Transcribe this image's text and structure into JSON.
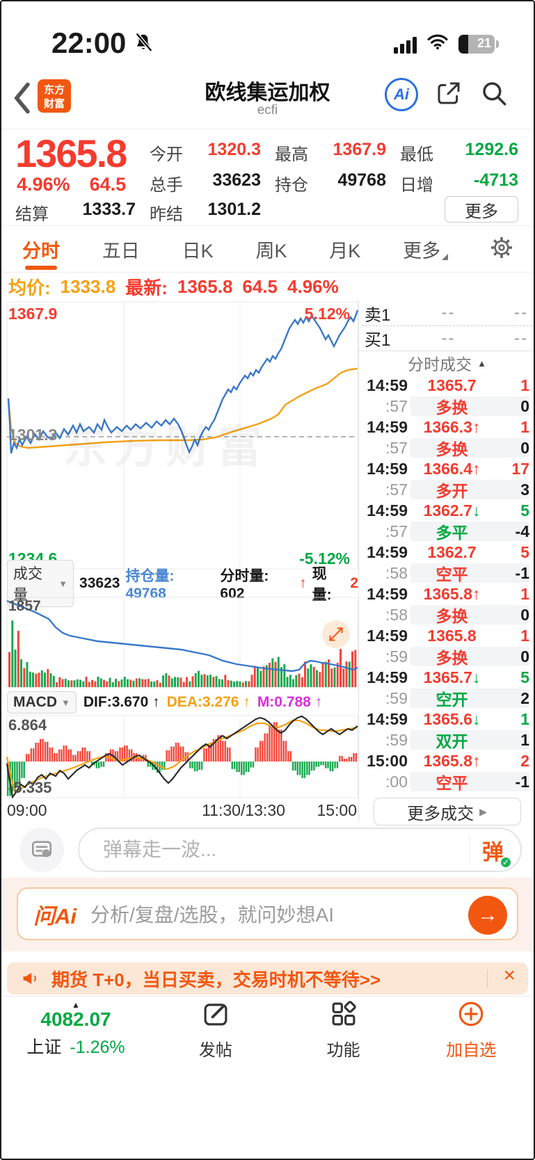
{
  "status": {
    "time": "22:00",
    "battery": "21"
  },
  "header": {
    "logo_line1": "东方",
    "logo_line2": "财富",
    "title": "欧线集运加权",
    "subtitle": "ecfi",
    "ai_label": "Ai"
  },
  "quote": {
    "price": "1365.8",
    "change_pct": "4.96%",
    "change": "64.5",
    "open_label": "今开",
    "open": "1320.3",
    "high_label": "最高",
    "high": "1367.9",
    "low_label": "最低",
    "low": "1292.6",
    "vol_label": "总手",
    "vol": "33623",
    "oi_label": "持仓",
    "oi": "49768",
    "inc_label": "日增",
    "inc": "-4713",
    "settle_label": "结算",
    "settle": "1333.7",
    "prev_label": "昨结",
    "prev": "1301.2",
    "more_label": "更多"
  },
  "tabs": {
    "items": [
      "分时",
      "五日",
      "日K",
      "周K",
      "月K"
    ],
    "more": "更多"
  },
  "avg_row": {
    "avg_label": "均价:",
    "avg": "1333.8",
    "last_label": "最新:",
    "last": "1365.8",
    "chg": "64.5",
    "pct": "4.96%"
  },
  "chart": {
    "y_max": "1367.9",
    "y_mid": "1301.3",
    "y_min": "1234.6",
    "pct_max": "5.12%",
    "pct_min": "-5.12%",
    "watermark": "东方财富",
    "x_labels": [
      "09:00",
      "11:30/13:30",
      "15:00"
    ]
  },
  "volume": {
    "selector": "成交量",
    "total": "33623",
    "oi_label": "持仓量:",
    "oi": "49768",
    "min_label": "分时量:",
    "min_vol": "602",
    "arrow": "↑",
    "cur_label": "现量:",
    "cur": "2",
    "y_max": "1857"
  },
  "macd": {
    "selector": "MACD",
    "dif": "DIF:3.670 ↑",
    "dea": "DEA:3.276 ↑",
    "m": "M:0.788 ↑",
    "y_max": "6.864",
    "y_min": "-5.335"
  },
  "orderbook": {
    "ask_label": "卖1",
    "ask_price": "--",
    "ask_vol": "--",
    "bid_label": "买1",
    "bid_price": "--",
    "bid_vol": "--"
  },
  "trades": {
    "header": "分时成交",
    "more": "更多成交",
    "rows": [
      {
        "time": "14:59",
        "price": "1365.7",
        "arrow": "",
        "ac": "",
        "pc": "r",
        "value": "1",
        "vc": "r",
        "shaded": false
      },
      {
        "time": ":57",
        "price": "多换",
        "arrow": "",
        "ac": "",
        "pc": "r",
        "value": "0",
        "vc": "k",
        "shaded": true
      },
      {
        "time": "14:59",
        "price": "1366.3",
        "arrow": "↑",
        "ac": "r",
        "pc": "r",
        "value": "1",
        "vc": "r",
        "shaded": false
      },
      {
        "time": ":57",
        "price": "多换",
        "arrow": "",
        "ac": "",
        "pc": "r",
        "value": "0",
        "vc": "k",
        "shaded": true
      },
      {
        "time": "14:59",
        "price": "1366.4",
        "arrow": "↑",
        "ac": "r",
        "pc": "r",
        "value": "17",
        "vc": "r",
        "shaded": false
      },
      {
        "time": ":57",
        "price": "多开",
        "arrow": "",
        "ac": "",
        "pc": "r",
        "value": "3",
        "vc": "k",
        "shaded": true
      },
      {
        "time": "14:59",
        "price": "1362.7",
        "arrow": "↓",
        "ac": "g",
        "pc": "r",
        "value": "5",
        "vc": "g",
        "shaded": false
      },
      {
        "time": ":57",
        "price": "多平",
        "arrow": "",
        "ac": "",
        "pc": "g",
        "value": "-4",
        "vc": "k",
        "shaded": true
      },
      {
        "time": "14:59",
        "price": "1362.7",
        "arrow": "",
        "ac": "",
        "pc": "r",
        "value": "5",
        "vc": "r",
        "shaded": false
      },
      {
        "time": ":58",
        "price": "空平",
        "arrow": "",
        "ac": "",
        "pc": "r",
        "value": "-1",
        "vc": "k",
        "shaded": true
      },
      {
        "time": "14:59",
        "price": "1365.8",
        "arrow": "↑",
        "ac": "r",
        "pc": "r",
        "value": "1",
        "vc": "r",
        "shaded": false
      },
      {
        "time": ":58",
        "price": "多换",
        "arrow": "",
        "ac": "",
        "pc": "r",
        "value": "0",
        "vc": "k",
        "shaded": true
      },
      {
        "time": "14:59",
        "price": "1365.8",
        "arrow": "",
        "ac": "",
        "pc": "r",
        "value": "1",
        "vc": "r",
        "shaded": false
      },
      {
        "time": ":59",
        "price": "多换",
        "arrow": "",
        "ac": "",
        "pc": "r",
        "value": "0",
        "vc": "k",
        "shaded": true
      },
      {
        "time": "14:59",
        "price": "1365.7",
        "arrow": "↓",
        "ac": "g",
        "pc": "r",
        "value": "5",
        "vc": "g",
        "shaded": false
      },
      {
        "time": ":59",
        "price": "空开",
        "arrow": "",
        "ac": "",
        "pc": "g",
        "value": "2",
        "vc": "k",
        "shaded": true
      },
      {
        "time": "14:59",
        "price": "1365.6",
        "arrow": "↓",
        "ac": "g",
        "pc": "r",
        "value": "1",
        "vc": "g",
        "shaded": false
      },
      {
        "time": ":59",
        "price": "双开",
        "arrow": "",
        "ac": "",
        "pc": "g",
        "value": "1",
        "vc": "k",
        "shaded": true
      },
      {
        "time": "15:00",
        "price": "1365.8",
        "arrow": "↑",
        "ac": "r",
        "pc": "r",
        "value": "2",
        "vc": "r",
        "shaded": false
      },
      {
        "time": ":00",
        "price": "空平",
        "arrow": "",
        "ac": "",
        "pc": "r",
        "value": "-1",
        "vc": "k",
        "shaded": true
      }
    ]
  },
  "danmu": {
    "placeholder": "弹幕走一波...",
    "send": "弹",
    "check": "✓"
  },
  "ask_ai": {
    "logo": "问Ai",
    "placeholder": "分析/复盘/选股，就问妙想AI",
    "go": "→"
  },
  "banner": {
    "text": "期货 T+0，当日买卖，交易时机不等待>>",
    "close": "×"
  },
  "tabbar": {
    "index_value": "4082.07",
    "index_name": "上证",
    "index_chg": "-1.26%",
    "post": "发帖",
    "features": "功能",
    "watchlist": "加自选"
  },
  "colors": {
    "red": "#f43b2e",
    "green": "#00a843",
    "orange": "#f2570f",
    "blue_line": "#3a78c9",
    "avg_line": "#f5a012",
    "oi_blue": "#4a86d2",
    "magenta": "#d930d9"
  }
}
